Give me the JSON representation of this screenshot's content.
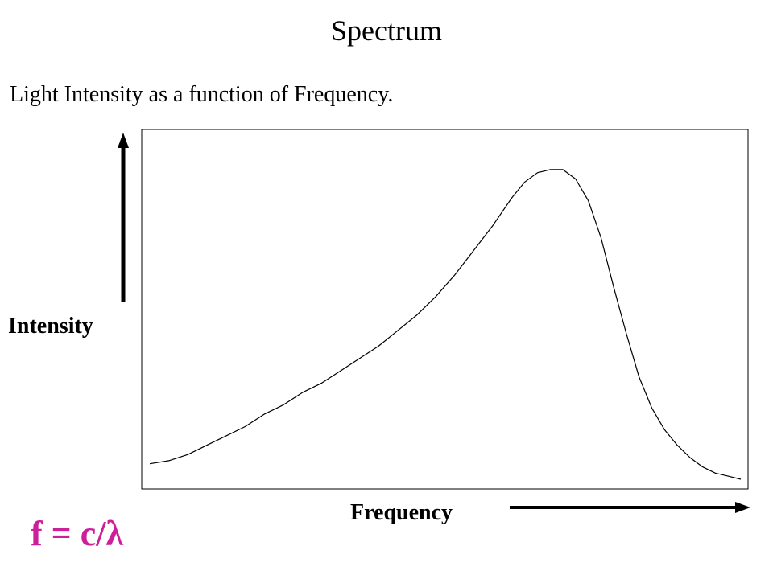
{
  "title": "Spectrum",
  "subtitle": "Light Intensity as a function of Frequency.",
  "axes": {
    "y_label": "Intensity",
    "x_label": "Frequency"
  },
  "formula": "f = c/λ",
  "colors": {
    "formula": "#cc1f99",
    "line": "#000000",
    "background": "#ffffff"
  },
  "chart_data": {
    "type": "line",
    "title": "Spectrum",
    "xlabel": "Frequency",
    "ylabel": "Intensity",
    "grid": false,
    "series": [
      {
        "points": [
          [
            0.0,
            0.05
          ],
          [
            0.03,
            0.06
          ],
          [
            0.06,
            0.08
          ],
          [
            0.09,
            0.11
          ],
          [
            0.12,
            0.14
          ],
          [
            0.15,
            0.17
          ],
          [
            0.18,
            0.21
          ],
          [
            0.21,
            0.24
          ],
          [
            0.24,
            0.28
          ],
          [
            0.27,
            0.31
          ],
          [
            0.3,
            0.35
          ],
          [
            0.33,
            0.39
          ],
          [
            0.36,
            0.43
          ],
          [
            0.39,
            0.48
          ],
          [
            0.42,
            0.53
          ],
          [
            0.45,
            0.59
          ],
          [
            0.48,
            0.66
          ],
          [
            0.51,
            0.74
          ],
          [
            0.54,
            0.82
          ],
          [
            0.57,
            0.91
          ],
          [
            0.59,
            0.96
          ],
          [
            0.61,
            0.99
          ],
          [
            0.63,
            1.0
          ],
          [
            0.65,
            1.0
          ],
          [
            0.67,
            0.97
          ],
          [
            0.69,
            0.9
          ],
          [
            0.71,
            0.78
          ],
          [
            0.73,
            0.62
          ],
          [
            0.75,
            0.47
          ],
          [
            0.77,
            0.33
          ],
          [
            0.79,
            0.23
          ],
          [
            0.81,
            0.16
          ],
          [
            0.83,
            0.11
          ],
          [
            0.85,
            0.07
          ],
          [
            0.87,
            0.04
          ],
          [
            0.89,
            0.02
          ],
          [
            0.91,
            0.01
          ],
          [
            0.93,
            0.0
          ]
        ]
      }
    ]
  }
}
